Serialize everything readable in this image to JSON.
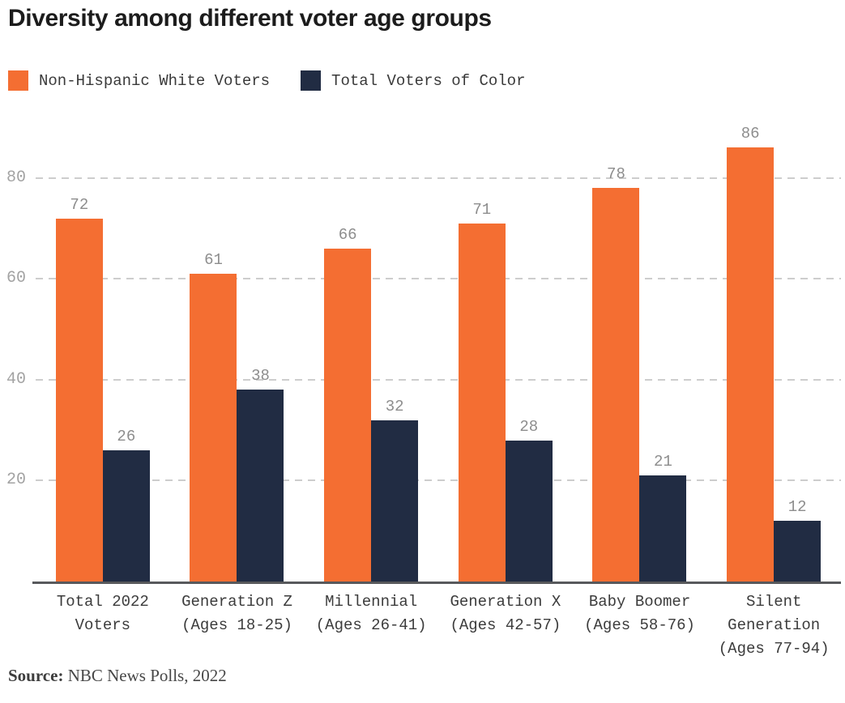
{
  "title": "Diversity among different voter age groups",
  "legend": [
    {
      "label": "Non-Hispanic White Voters",
      "color": "#F46E32"
    },
    {
      "label": "Total Voters of Color",
      "color": "#212C43"
    }
  ],
  "source": {
    "prefix": "Source:",
    "text": " NBC News Polls, 2022"
  },
  "chart_data": {
    "type": "bar",
    "title": "Diversity among different voter age groups",
    "xlabel": "",
    "ylabel": "",
    "categories": [
      "Total 2022 Voters",
      "Generation Z (Ages 18-25)",
      "Millennial (Ages 26-41)",
      "Generation X (Ages 42-57)",
      "Baby Boomer (Ages 58-76)",
      "Silent Generation (Ages 77-94)"
    ],
    "categories_lines": [
      [
        "Total 2022",
        "Voters"
      ],
      [
        "Generation Z",
        "(Ages 18-25)"
      ],
      [
        "Millennial",
        "(Ages 26-41)"
      ],
      [
        "Generation X",
        "(Ages 42-57)"
      ],
      [
        "Baby Boomer",
        "(Ages 58-76)"
      ],
      [
        "Silent",
        "Generation",
        "(Ages 77-94)"
      ]
    ],
    "series": [
      {
        "name": "Non-Hispanic White Voters",
        "color": "#F46E32",
        "values": [
          72,
          61,
          66,
          71,
          78,
          86
        ]
      },
      {
        "name": "Total Voters of Color",
        "color": "#212C43",
        "values": [
          26,
          38,
          32,
          28,
          21,
          12
        ]
      }
    ],
    "yticks": [
      20,
      40,
      60,
      80
    ],
    "ylim": [
      0,
      92
    ],
    "grid": "horizontal-dashed",
    "grid_color": "#cdcdcd",
    "axis_line_color": "#58595c",
    "value_label_color": "#8d8d8d",
    "tick_label_color": "#a3a3a3",
    "legend_position": "top-left"
  }
}
